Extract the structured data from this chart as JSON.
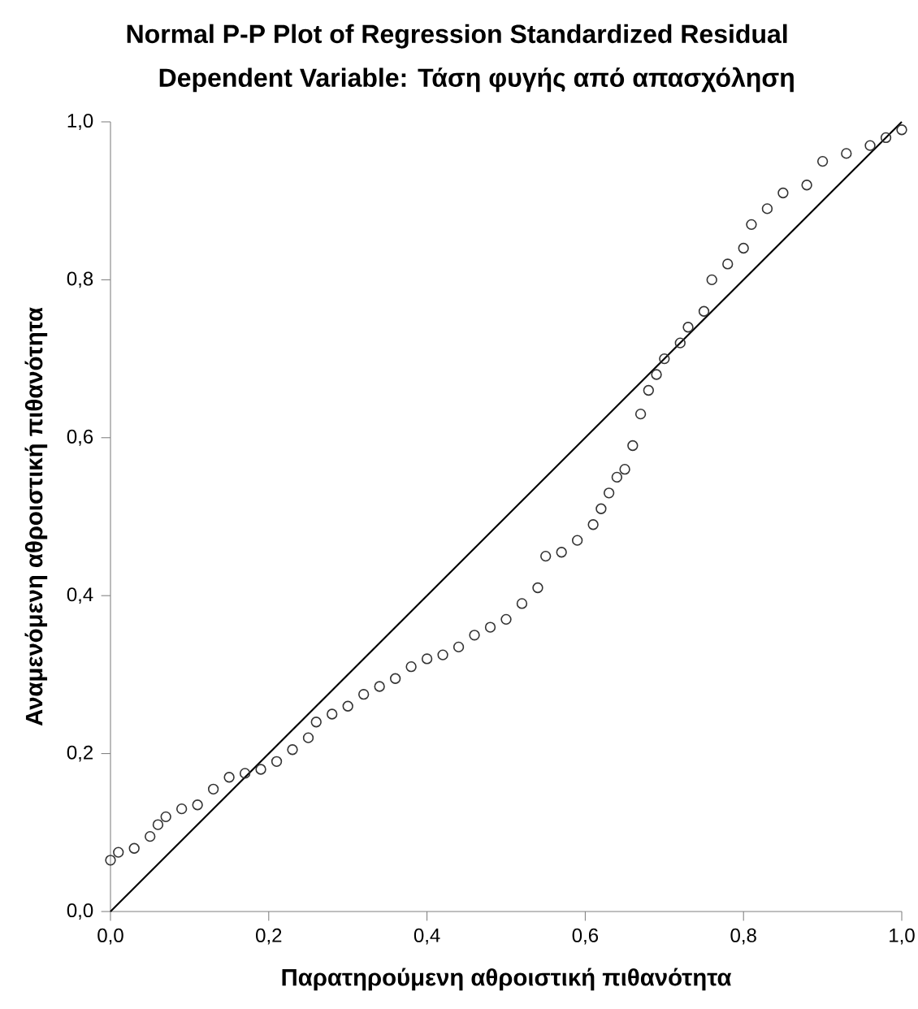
{
  "chart_data": {
    "type": "scatter",
    "title": "Normal P-P Plot of Regression Standardized Residual",
    "subtitle": "Dependent Variable: Τάση φυγής από απασχόληση",
    "xlabel": "Παρατηρούμενη αθροιστική πιθανότητα",
    "ylabel": "Αναμενόμενη αθροιστική πιθανότητα",
    "xlim": [
      0,
      1
    ],
    "ylim": [
      0,
      1
    ],
    "xticks": [
      {
        "value": 0,
        "label": "0,0"
      },
      {
        "value": 0.2,
        "label": "0,2"
      },
      {
        "value": 0.4,
        "label": "0,4"
      },
      {
        "value": 0.6,
        "label": "0,6"
      },
      {
        "value": 0.8,
        "label": "0,8"
      },
      {
        "value": 1,
        "label": "1,0"
      }
    ],
    "yticks": [
      {
        "value": 0,
        "label": "0,0"
      },
      {
        "value": 0.2,
        "label": "0,2"
      },
      {
        "value": 0.4,
        "label": "0,4"
      },
      {
        "value": 0.6,
        "label": "0,6"
      },
      {
        "value": 0.8,
        "label": "0,8"
      },
      {
        "value": 1,
        "label": "1,0"
      }
    ],
    "series": [
      {
        "color": "#333333",
        "marker": "circle",
        "x": [
          0.0,
          0.01,
          0.03,
          0.05,
          0.06,
          0.07,
          0.09,
          0.11,
          0.13,
          0.15,
          0.17,
          0.19,
          0.21,
          0.23,
          0.25,
          0.26,
          0.28,
          0.3,
          0.32,
          0.34,
          0.36,
          0.38,
          0.4,
          0.42,
          0.44,
          0.46,
          0.48,
          0.5,
          0.52,
          0.54,
          0.55,
          0.57,
          0.59,
          0.61,
          0.62,
          0.63,
          0.64,
          0.65,
          0.66,
          0.67,
          0.68,
          0.69,
          0.7,
          0.72,
          0.73,
          0.75,
          0.76,
          0.78,
          0.8,
          0.81,
          0.83,
          0.85,
          0.88,
          0.9,
          0.93,
          0.96,
          0.98,
          1.0
        ],
        "values": [
          0.065,
          0.075,
          0.08,
          0.095,
          0.11,
          0.12,
          0.13,
          0.135,
          0.155,
          0.17,
          0.175,
          0.18,
          0.19,
          0.205,
          0.22,
          0.24,
          0.25,
          0.26,
          0.275,
          0.285,
          0.295,
          0.31,
          0.32,
          0.325,
          0.335,
          0.35,
          0.36,
          0.37,
          0.39,
          0.41,
          0.45,
          0.455,
          0.47,
          0.49,
          0.51,
          0.53,
          0.55,
          0.56,
          0.59,
          0.63,
          0.66,
          0.68,
          0.7,
          0.72,
          0.74,
          0.76,
          0.8,
          0.82,
          0.84,
          0.87,
          0.89,
          0.91,
          0.92,
          0.95,
          0.96,
          0.97,
          0.98,
          0.99
        ]
      },
      {
        "type": "line",
        "color": "#000000",
        "marker": "none",
        "x": [
          0,
          1
        ],
        "values": [
          0,
          1
        ]
      }
    ]
  }
}
